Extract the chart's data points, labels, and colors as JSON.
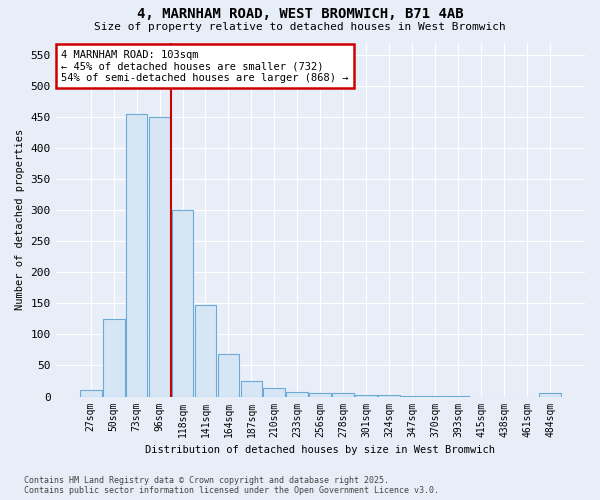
{
  "title": "4, MARNHAM ROAD, WEST BROMWICH, B71 4AB",
  "subtitle": "Size of property relative to detached houses in West Bromwich",
  "xlabel": "Distribution of detached houses by size in West Bromwich",
  "ylabel": "Number of detached properties",
  "bar_color": "#d6e6f5",
  "bar_edge_color": "#6aaad4",
  "highlight_color": "#cc0000",
  "background_color": "#e8eef8",
  "grid_color": "#ffffff",
  "categories": [
    "27sqm",
    "50sqm",
    "73sqm",
    "96sqm",
    "118sqm",
    "141sqm",
    "164sqm",
    "187sqm",
    "210sqm",
    "233sqm",
    "256sqm",
    "278sqm",
    "301sqm",
    "324sqm",
    "347sqm",
    "370sqm",
    "393sqm",
    "415sqm",
    "438sqm",
    "461sqm",
    "484sqm"
  ],
  "values": [
    10,
    125,
    455,
    450,
    300,
    148,
    68,
    25,
    13,
    8,
    6,
    5,
    3,
    2,
    1,
    1,
    1,
    0,
    0,
    0,
    6
  ],
  "highlight_bin_index": 3,
  "vline_x": 3.5,
  "annotation_text": "4 MARNHAM ROAD: 103sqm\n← 45% of detached houses are smaller (732)\n54% of semi-detached houses are larger (868) →",
  "footer_line1": "Contains HM Land Registry data © Crown copyright and database right 2025.",
  "footer_line2": "Contains public sector information licensed under the Open Government Licence v3.0.",
  "ylim": [
    0,
    570
  ],
  "yticks": [
    0,
    50,
    100,
    150,
    200,
    250,
    300,
    350,
    400,
    450,
    500,
    550
  ]
}
